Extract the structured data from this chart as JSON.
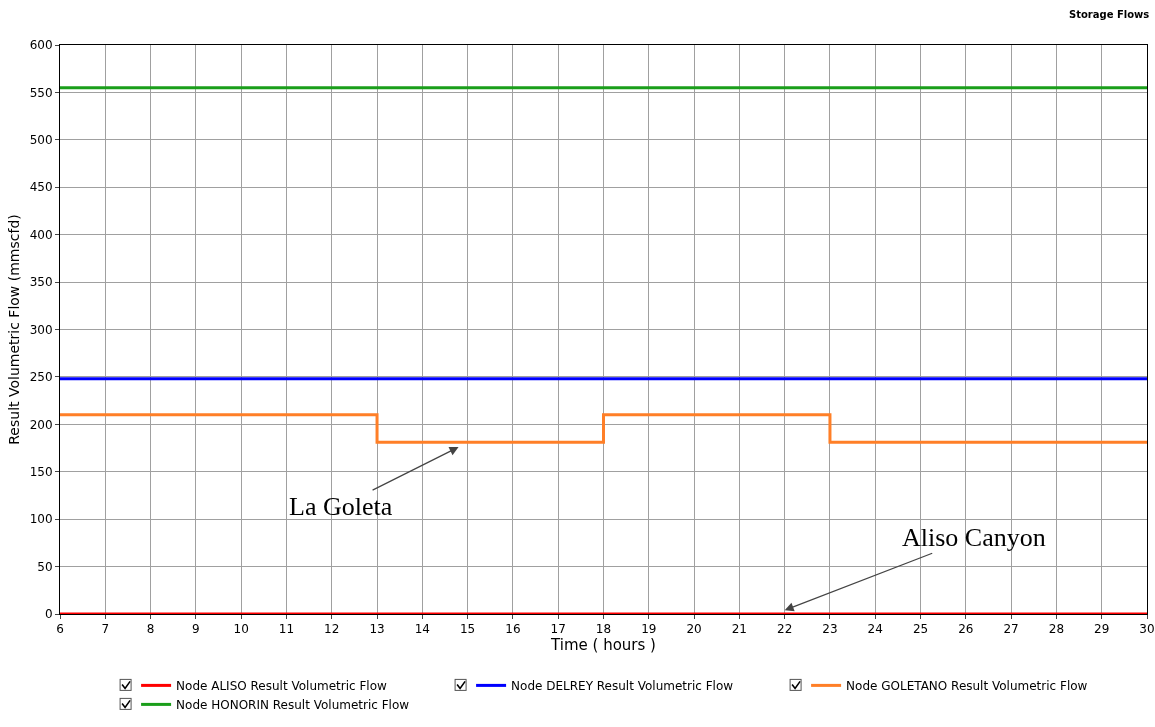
{
  "chart_data": {
    "type": "line",
    "title": "Storage Flows",
    "xlabel": "Time ( hours )",
    "ylabel": "Result Volumetric Flow (mmscfd)",
    "series": [
      {
        "name": "Node ALISO Result Volumetric Flow",
        "color": "#ff0000",
        "x": [
          6,
          30
        ],
        "values": [
          0,
          0
        ]
      },
      {
        "name": "Node DELREY Result Volumetric Flow",
        "color": "#0000ff",
        "x": [
          6,
          30
        ],
        "values": [
          248,
          248
        ]
      },
      {
        "name": "Node GOLETANO Result Volumetric Flow",
        "color": "#ff7f27",
        "type": "step",
        "x": [
          6,
          13,
          18,
          23,
          30
        ],
        "values": [
          210,
          181,
          210,
          181,
          181
        ]
      },
      {
        "name": "Node HONORIN Result Volumetric Flow",
        "color": "#1a9e1a",
        "x": [
          6,
          30
        ],
        "values": [
          555,
          555
        ]
      }
    ],
    "xlim": [
      6,
      30
    ],
    "xticks": [
      6,
      7,
      8,
      9,
      10,
      11,
      12,
      13,
      14,
      15,
      16,
      17,
      18,
      19,
      20,
      21,
      22,
      23,
      24,
      25,
      26,
      27,
      28,
      29,
      30
    ],
    "ylim": [
      0,
      600
    ],
    "yticks": [
      0,
      50,
      100,
      150,
      200,
      250,
      300,
      350,
      400,
      450,
      500,
      550,
      600
    ],
    "annotations": [
      {
        "text": "La Goleta",
        "x": 14.8,
        "y": 176
      },
      {
        "text": "Aliso Canyon",
        "x": 22,
        "y": 4
      }
    ],
    "grid": true,
    "legend": "bottom",
    "marker": "none",
    "line_style": "solid"
  }
}
